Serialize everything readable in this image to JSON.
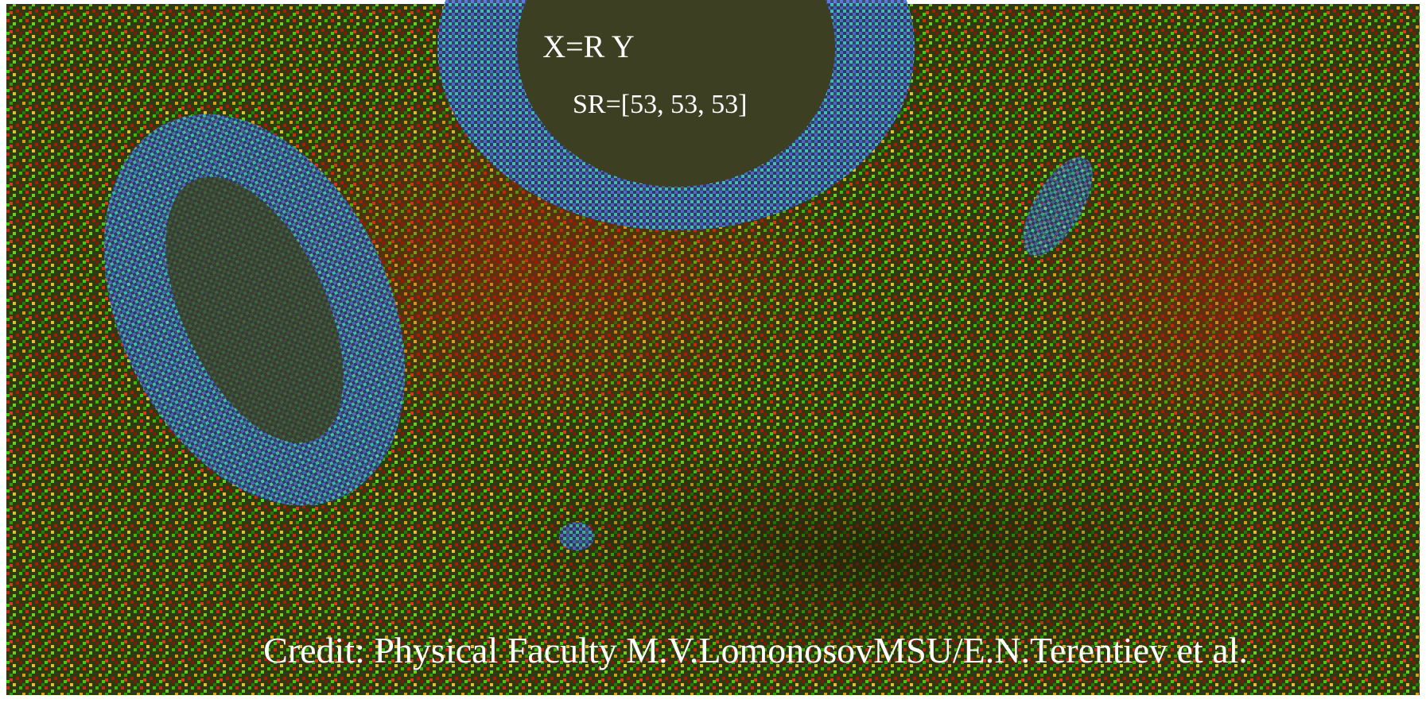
{
  "image": {
    "title": "X=R Y",
    "subtitle": "SR=[53, 53, 53]",
    "credit": "Credit: Physical Faculty M.V.LomonosovMSU/E.N.Terentiev et al."
  }
}
